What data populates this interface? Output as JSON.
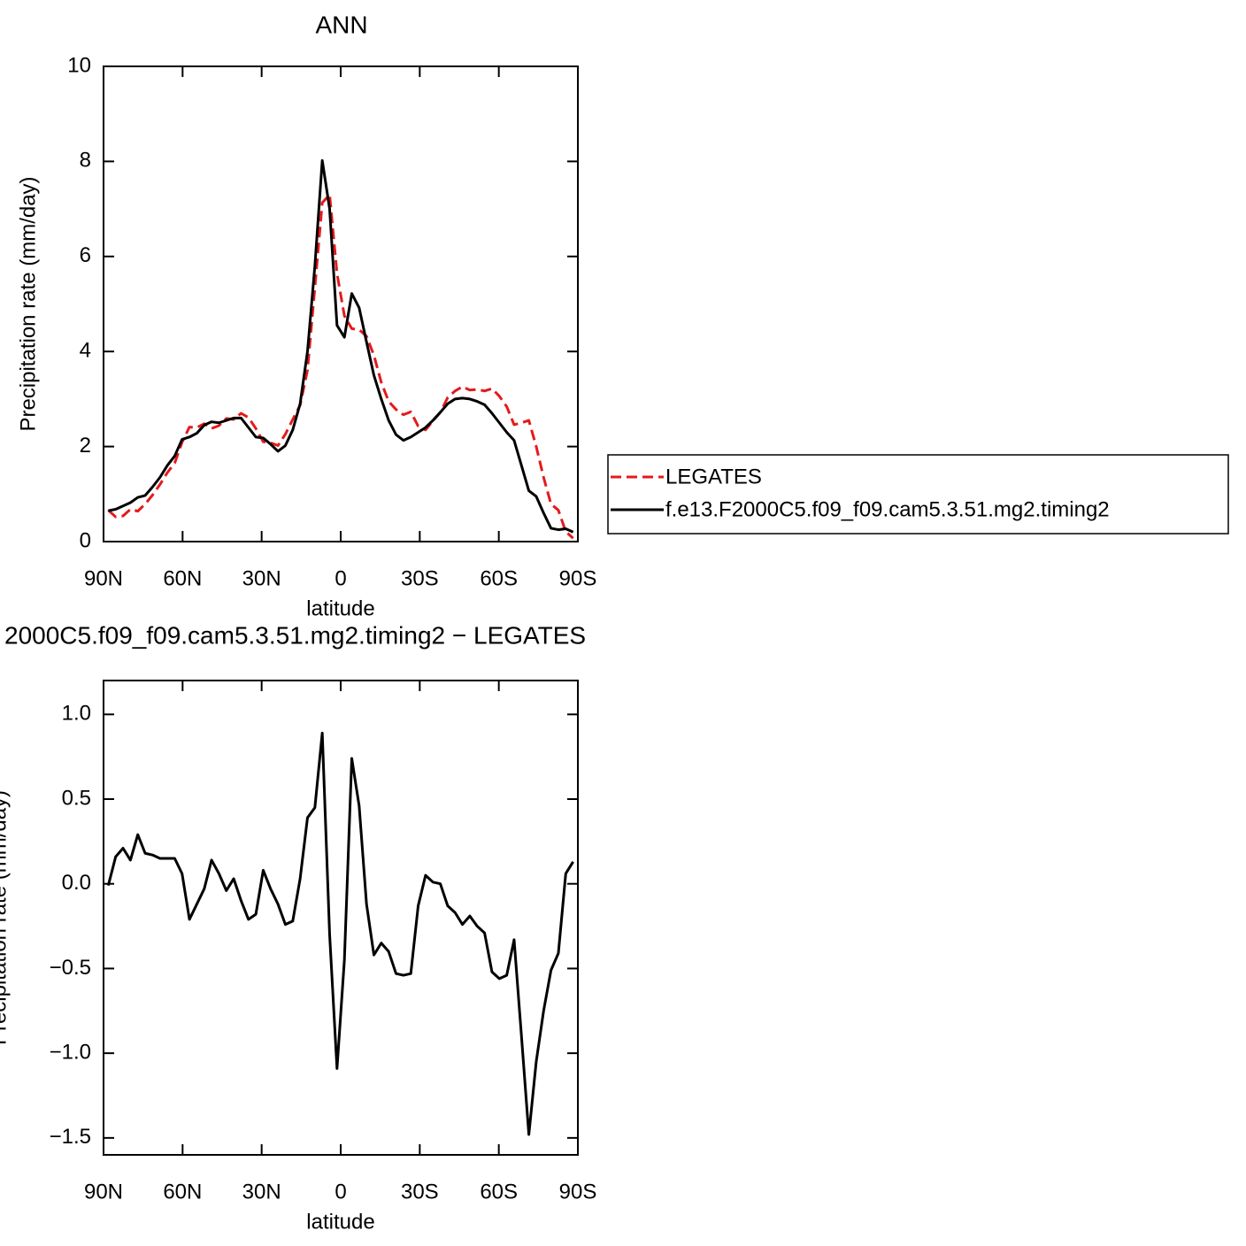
{
  "chart_data": [
    {
      "type": "line",
      "title": "ANN",
      "y_label": "Precipitation rate (mm/day)",
      "x_label": "latitude",
      "x": [
        88.2,
        85.4,
        82.6,
        79.8,
        77.0,
        74.2,
        71.4,
        68.6,
        65.8,
        63.0,
        60.2,
        57.4,
        54.6,
        51.8,
        49.0,
        46.2,
        43.4,
        40.6,
        37.8,
        35.0,
        32.2,
        29.4,
        26.6,
        23.8,
        21.0,
        18.2,
        15.4,
        12.6,
        9.8,
        7.0,
        4.2,
        1.4,
        -1.4,
        -4.2,
        -7.0,
        -9.8,
        -12.6,
        -15.4,
        -18.2,
        -21.0,
        -23.8,
        -26.6,
        -29.4,
        -32.2,
        -35.0,
        -37.8,
        -40.6,
        -43.4,
        -46.2,
        -49.0,
        -51.8,
        -54.6,
        -57.4,
        -60.2,
        -63.0,
        -65.8,
        -68.6,
        -71.4,
        -74.2,
        -77.0,
        -79.8,
        -82.6,
        -85.4,
        -88.2
      ],
      "series": [
        {
          "name": "LEGATES",
          "color": "#e41a1c",
          "linestyle": "dashed",
          "values": [
            0.66,
            0.52,
            0.54,
            0.68,
            0.64,
            0.79,
            0.98,
            1.2,
            1.45,
            1.65,
            2.09,
            2.41,
            2.4,
            2.48,
            2.38,
            2.44,
            2.59,
            2.57,
            2.7,
            2.61,
            2.38,
            2.1,
            2.08,
            2.02,
            2.26,
            2.57,
            2.87,
            3.61,
            5.35,
            7.13,
            7.3,
            5.64,
            4.75,
            4.48,
            4.46,
            4.32,
            3.92,
            3.35,
            2.95,
            2.78,
            2.67,
            2.73,
            2.43,
            2.35,
            2.54,
            2.72,
            3.03,
            3.17,
            3.26,
            3.19,
            3.2,
            3.17,
            3.22,
            3.06,
            2.84,
            2.46,
            2.5,
            2.55,
            2.0,
            1.35,
            0.79,
            0.66,
            0.21,
            0.07
          ]
        },
        {
          "name": "f.e13.F2000C5.f09_f09.cam5.3.51.mg2.timing2",
          "color": "#000000",
          "linestyle": "solid",
          "values": [
            0.65,
            0.68,
            0.75,
            0.82,
            0.93,
            0.97,
            1.15,
            1.35,
            1.6,
            1.8,
            2.15,
            2.2,
            2.28,
            2.45,
            2.52,
            2.5,
            2.55,
            2.6,
            2.6,
            2.4,
            2.2,
            2.18,
            2.05,
            1.9,
            2.02,
            2.35,
            2.9,
            4.0,
            5.8,
            8.02,
            7.0,
            4.55,
            4.3,
            5.22,
            4.92,
            4.2,
            3.5,
            3.0,
            2.55,
            2.25,
            2.13,
            2.2,
            2.3,
            2.4,
            2.55,
            2.72,
            2.9,
            3.0,
            3.02,
            3.0,
            2.95,
            2.88,
            2.7,
            2.5,
            2.3,
            2.13,
            1.6,
            1.07,
            0.95,
            0.6,
            0.28,
            0.25,
            0.27,
            0.2
          ]
        }
      ],
      "xlim": [
        90,
        -90
      ],
      "xticks": [
        {
          "value": 90,
          "label": "90N"
        },
        {
          "value": 60,
          "label": "60N"
        },
        {
          "value": 30,
          "label": "30N"
        },
        0,
        {
          "value": -30,
          "label": "30S"
        },
        {
          "value": -60,
          "label": "60S"
        },
        {
          "value": -90,
          "label": "90S"
        }
      ],
      "ylim": [
        0,
        10
      ],
      "yticks": [
        0,
        2,
        4,
        6,
        8,
        10
      ],
      "legend": "right"
    },
    {
      "type": "line",
      "title": "2000C5.f09_f09.cam5.3.51.mg2.timing2 − LEGATES",
      "y_label": "Precipitation rate (mm/day)",
      "x_label": "latitude",
      "x": [
        88.2,
        85.4,
        82.6,
        79.8,
        77.0,
        74.2,
        71.4,
        68.6,
        65.8,
        63.0,
        60.2,
        57.4,
        54.6,
        51.8,
        49.0,
        46.2,
        43.4,
        40.6,
        37.8,
        35.0,
        32.2,
        29.4,
        26.6,
        23.8,
        21.0,
        18.2,
        15.4,
        12.6,
        9.8,
        7.0,
        4.2,
        1.4,
        -1.4,
        -4.2,
        -7.0,
        -9.8,
        -12.6,
        -15.4,
        -18.2,
        -21.0,
        -23.8,
        -26.6,
        -29.4,
        -32.2,
        -35.0,
        -37.8,
        -40.6,
        -43.4,
        -46.2,
        -49.0,
        -51.8,
        -54.6,
        -57.4,
        -60.2,
        -63.0,
        -65.8,
        -68.6,
        -71.4,
        -74.2,
        -77.0,
        -79.8,
        -82.6,
        -85.4,
        -88.2
      ],
      "color": "#000000",
      "values": [
        -0.01,
        0.16,
        0.21,
        0.14,
        0.29,
        0.18,
        0.17,
        0.15,
        0.15,
        0.15,
        0.06,
        -0.21,
        -0.12,
        -0.03,
        0.14,
        0.06,
        -0.04,
        0.03,
        -0.1,
        -0.21,
        -0.18,
        0.08,
        -0.03,
        -0.12,
        -0.24,
        -0.22,
        0.03,
        0.39,
        0.45,
        0.89,
        -0.3,
        -1.09,
        -0.45,
        0.74,
        0.46,
        -0.12,
        -0.42,
        -0.35,
        -0.4,
        -0.53,
        -0.54,
        -0.53,
        -0.13,
        0.05,
        0.01,
        0.0,
        -0.13,
        -0.17,
        -0.24,
        -0.19,
        -0.25,
        -0.29,
        -0.52,
        -0.56,
        -0.54,
        -0.33,
        -0.9,
        -1.48,
        -1.05,
        -0.75,
        -0.51,
        -0.41,
        0.06,
        0.13
      ],
      "xlim": [
        90,
        -90
      ],
      "xticks": [
        {
          "value": 90,
          "label": "90N"
        },
        {
          "value": 60,
          "label": "60N"
        },
        {
          "value": 30,
          "label": "30N"
        },
        0,
        {
          "value": -30,
          "label": "30S"
        },
        {
          "value": -60,
          "label": "60S"
        },
        {
          "value": -90,
          "label": "90S"
        }
      ],
      "ylim": [
        -1.6,
        1.2
      ],
      "yticks": [
        {
          "value": -1.5,
          "label": "−1.5"
        },
        {
          "value": -1.0,
          "label": "−1.0"
        },
        {
          "value": -0.5,
          "label": "−0.5"
        },
        {
          "value": 0.0,
          "label": "0.0"
        },
        {
          "value": 0.5,
          "label": "0.5"
        },
        {
          "value": 1.0,
          "label": "1.0"
        }
      ]
    }
  ]
}
